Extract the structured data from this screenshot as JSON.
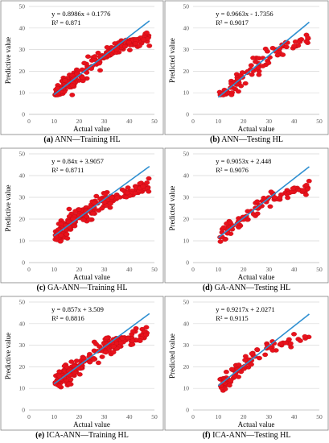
{
  "chart_data": [
    {
      "type": "scatter",
      "id": "a",
      "xlabel": "Actual value",
      "ylabel": "Predictive value",
      "xlim": [
        0,
        50
      ],
      "ylim": [
        0,
        50
      ],
      "xticks": [
        "0",
        "10",
        "20",
        "30",
        "40",
        "50"
      ],
      "yticks": [
        "0",
        "10",
        "20",
        "30",
        "40",
        "50"
      ],
      "equation": "y = 0.8986x + 0.1776",
      "r2": "R² = 0.871",
      "slope": 0.8986,
      "intercept": 0.1776,
      "fit_range": [
        10,
        48
      ],
      "caption_label": "(a)",
      "caption_text": "ANN—Training HL",
      "point_count": 220,
      "point_color": "#e8121c",
      "line_color": "#2e8fd1",
      "grid": true
    },
    {
      "type": "scatter",
      "id": "b",
      "xlabel": "Actual value",
      "ylabel": "Predicted value",
      "xlim": [
        0,
        50
      ],
      "ylim": [
        0,
        50
      ],
      "xticks": [
        "0",
        "10",
        "20",
        "30",
        "40",
        "50"
      ],
      "yticks": [
        "0",
        "10",
        "20",
        "30",
        "40",
        "50"
      ],
      "equation": "y = 0.9663x - 1.7356",
      "r2": "R² = 0.9017",
      "slope": 0.9663,
      "intercept": -1.7356,
      "fit_range": [
        10,
        46
      ],
      "caption_label": "(b)",
      "caption_text": "ANN—Testing HL",
      "point_count": 90,
      "point_color": "#e8121c",
      "line_color": "#2e8fd1",
      "grid": true
    },
    {
      "type": "scatter",
      "id": "c",
      "xlabel": "Actual value",
      "ylabel": "Predictive value",
      "xlim": [
        0,
        50
      ],
      "ylim": [
        0,
        50
      ],
      "xticks": [
        "0",
        "10",
        "20",
        "30",
        "40",
        "50"
      ],
      "yticks": [
        "0",
        "10",
        "20",
        "30",
        "40",
        "50"
      ],
      "equation": "y = 0.84x + 3.9057",
      "r2": "R² = 0.8711",
      "slope": 0.84,
      "intercept": 3.9057,
      "fit_range": [
        10,
        48
      ],
      "caption_label": "(c)",
      "caption_text": "GA-ANN—Training HL",
      "point_count": 220,
      "point_color": "#e8121c",
      "line_color": "#2e8fd1",
      "grid": true
    },
    {
      "type": "scatter",
      "id": "d",
      "xlabel": "Actual value",
      "ylabel": "Predicted value",
      "xlim": [
        0,
        50
      ],
      "ylim": [
        0,
        50
      ],
      "xticks": [
        "0",
        "10",
        "20",
        "30",
        "40",
        "50"
      ],
      "yticks": [
        "0",
        "10",
        "20",
        "30",
        "40",
        "50"
      ],
      "equation": "y = 0.9053x + 2.448",
      "r2": "R² = 0.9076",
      "slope": 0.9053,
      "intercept": 2.448,
      "fit_range": [
        10,
        46
      ],
      "caption_label": "(d)",
      "caption_text": "GA-ANN—Testing HL",
      "point_count": 90,
      "point_color": "#e8121c",
      "line_color": "#2e8fd1",
      "grid": true
    },
    {
      "type": "scatter",
      "id": "e",
      "xlabel": "Actual value",
      "ylabel": "Predictive value",
      "xlim": [
        0,
        50
      ],
      "ylim": [
        0,
        50
      ],
      "xticks": [
        "0",
        "10",
        "20",
        "30",
        "40",
        "50"
      ],
      "yticks": [
        "0",
        "10",
        "20",
        "30",
        "40",
        "50"
      ],
      "equation": "y = 0.857x + 3.509",
      "r2": "R² = 0.8816",
      "slope": 0.857,
      "intercept": 3.509,
      "fit_range": [
        10,
        48
      ],
      "caption_label": "(e)",
      "caption_text": "ICA-ANN—Training HL",
      "point_count": 220,
      "point_color": "#e8121c",
      "line_color": "#2e8fd1",
      "grid": true
    },
    {
      "type": "scatter",
      "id": "f",
      "xlabel": "Actual value",
      "ylabel": "Predicted value",
      "xlim": [
        0,
        50
      ],
      "ylim": [
        0,
        50
      ],
      "xticks": [
        "0",
        "10",
        "20",
        "30",
        "40",
        "50"
      ],
      "yticks": [
        "0",
        "10",
        "20",
        "30",
        "40",
        "50"
      ],
      "equation": "y = 0.9217x + 2.0271",
      "r2": "R² = 0.9115",
      "slope": 0.9217,
      "intercept": 2.0271,
      "fit_range": [
        10,
        46
      ],
      "caption_label": "(f)",
      "caption_text": "ICA-ANN—Testing HL",
      "point_count": 90,
      "point_color": "#e8121c",
      "line_color": "#2e8fd1",
      "grid": true
    }
  ]
}
